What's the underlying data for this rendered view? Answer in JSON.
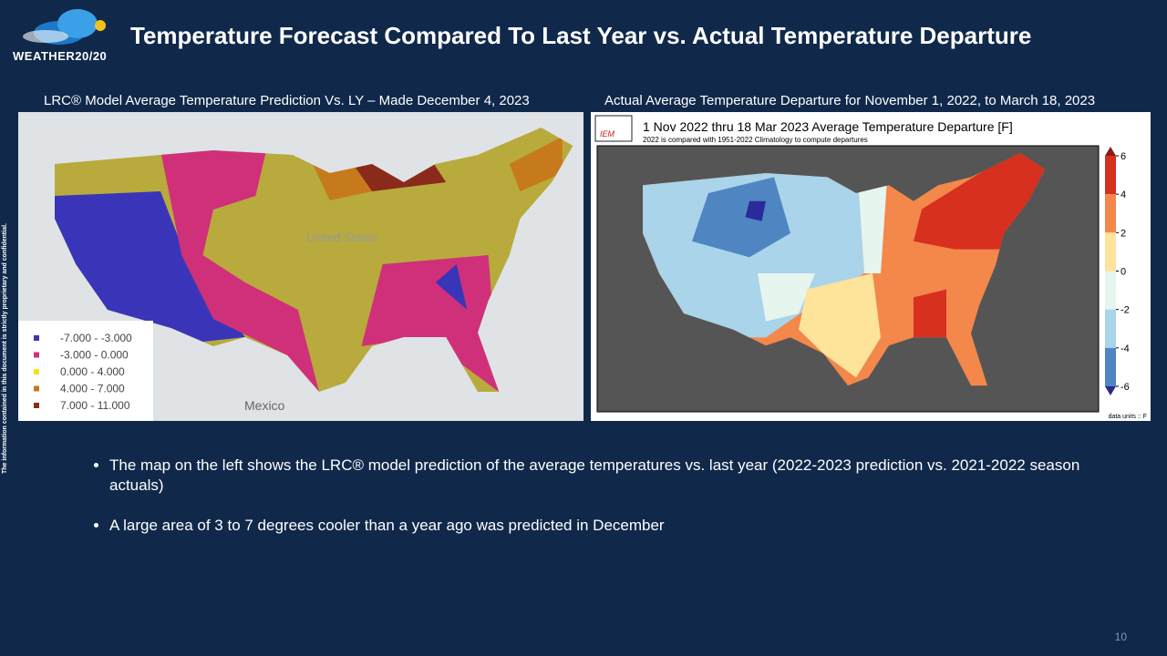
{
  "header": {
    "logo_text": "WEATHER20/20",
    "title": "Temperature Forecast Compared To Last Year vs. Actual Temperature Departure"
  },
  "side_note": "The information contained in this document is strictly proprietary and confidential.",
  "left_panel": {
    "caption": "LRC® Model Average Temperature Prediction Vs. LY – Made December 4, 2023",
    "map_labels": [
      "United States",
      "Mexico"
    ],
    "legend": [
      {
        "label": "-7.000 - -3.000",
        "color": "#3a35b8"
      },
      {
        "label": "-3.000 - 0.000",
        "color": "#d0307a"
      },
      {
        "label": "0.000 - 4.000",
        "color": "#f2e020"
      },
      {
        "label": "4.000 - 7.000",
        "color": "#c77a1c"
      },
      {
        "label": "7.000 - 11.000",
        "color": "#8a2a1a"
      }
    ]
  },
  "right_panel": {
    "caption": "Actual Average Temperature Departure for November 1, 2022, to March 18, 2023",
    "logo": "IEM",
    "title": "1 Nov 2022 thru 18 Mar 2023 Average Temperature Departure [F]",
    "subtitle": "2022 is compared with 1951-2022 Climatology to compute departures",
    "colorbar": {
      "ticks": [
        6,
        4,
        2,
        0,
        -2,
        -4,
        -6
      ],
      "colors": [
        "#d7301f",
        "#f4874a",
        "#fde49a",
        "#e7f5ef",
        "#a9d4ea",
        "#4f86c2"
      ]
    },
    "units": "data units :: F"
  },
  "bullets": [
    "The map on the left shows the LRC® model prediction of the average temperatures vs. last year (2022-2023 prediction vs. 2021-2022 season actuals)",
    "A large area of 3 to 7 degrees cooler than a year ago was predicted in December"
  ],
  "page_number": "10"
}
